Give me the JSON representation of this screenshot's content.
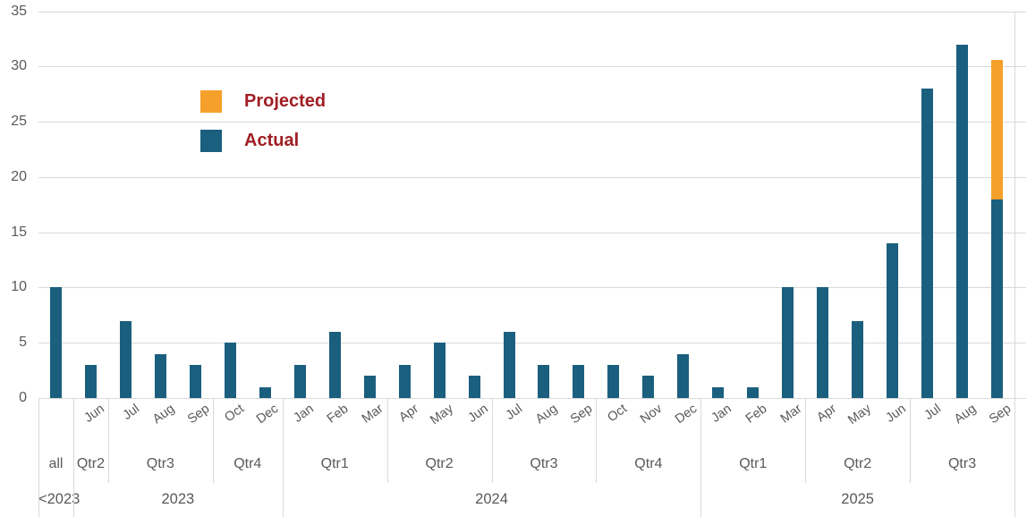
{
  "legend": {
    "projected_label": "Projected",
    "actual_label": "Actual"
  },
  "colors": {
    "actual": "#1b5f7e",
    "projected": "#f5a02b",
    "legend_text": "#a01e24",
    "axis_text": "#595959",
    "gridline": "#d9d9d9"
  },
  "chart_data": {
    "type": "bar",
    "stacked": true,
    "title": "",
    "xlabel": "",
    "ylabel": "",
    "ylim": [
      0,
      35
    ],
    "yticks": [
      0,
      5,
      10,
      15,
      20,
      25,
      30,
      35
    ],
    "grid": "horizontal",
    "legend_position": "upper-left-inside",
    "categories": [
      "",
      "Jun",
      "Jul",
      "Aug",
      "Sep",
      "Oct",
      "Dec",
      "Jan",
      "Feb",
      "Mar",
      "Apr",
      "May",
      "Jun",
      "Jul",
      "Aug",
      "Sep",
      "Oct",
      "Nov",
      "Dec",
      "Jan",
      "Feb",
      "Mar",
      "Apr",
      "May",
      "Jun",
      "Jul",
      "Aug",
      "Sep"
    ],
    "quarter_groups": [
      {
        "label": "all",
        "span": 1
      },
      {
        "label": "Qtr2",
        "span": 1
      },
      {
        "label": "Qtr3",
        "span": 3
      },
      {
        "label": "Qtr4",
        "span": 2
      },
      {
        "label": "Qtr1",
        "span": 3
      },
      {
        "label": "Qtr2",
        "span": 3
      },
      {
        "label": "Qtr3",
        "span": 3
      },
      {
        "label": "Qtr4",
        "span": 3
      },
      {
        "label": "Qtr1",
        "span": 3
      },
      {
        "label": "Qtr2",
        "span": 3
      },
      {
        "label": "Qtr3",
        "span": 3
      }
    ],
    "year_groups": [
      {
        "label": "<2023",
        "span": 1
      },
      {
        "label": "2023",
        "span": 6
      },
      {
        "label": "2024",
        "span": 12
      },
      {
        "label": "2025",
        "span": 9
      }
    ],
    "series": [
      {
        "name": "Actual",
        "color": "#1b5f7e",
        "values": [
          10,
          3,
          7,
          4,
          3,
          5,
          1,
          3,
          6,
          2,
          3,
          5,
          2,
          6,
          3,
          3,
          3,
          2,
          4,
          1,
          1,
          10,
          10,
          7,
          14,
          28,
          32,
          18
        ]
      },
      {
        "name": "Projected",
        "color": "#f5a02b",
        "values": [
          0,
          0,
          0,
          0,
          0,
          0,
          0,
          0,
          0,
          0,
          0,
          0,
          0,
          0,
          0,
          0,
          0,
          0,
          0,
          0,
          0,
          0,
          0,
          0,
          0,
          0,
          0,
          12.6
        ]
      }
    ]
  }
}
